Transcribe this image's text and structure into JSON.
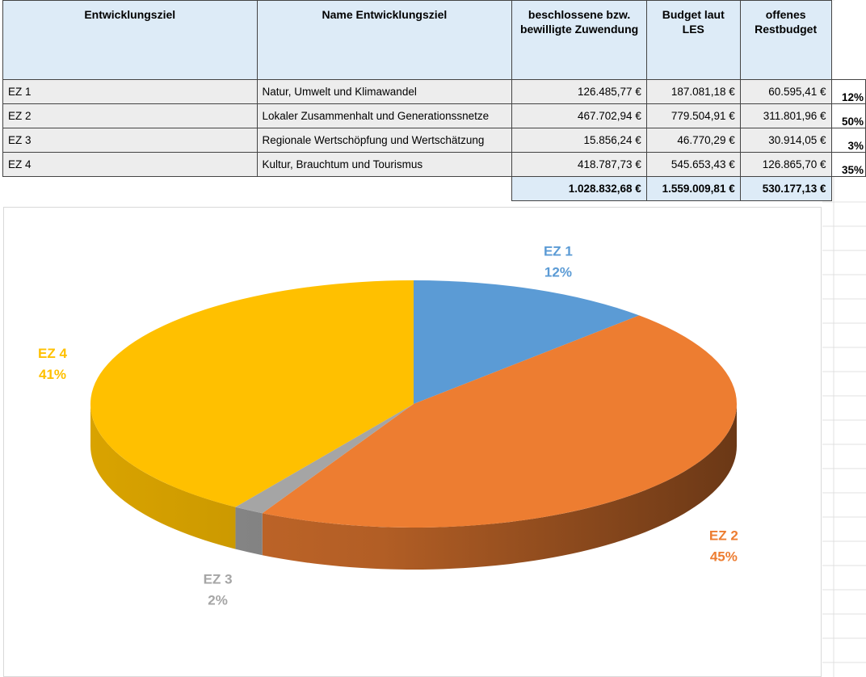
{
  "table": {
    "headers": [
      "Entwicklungsziel",
      "Name Entwicklungsziel",
      "beschlossene bzw. bewilligte Zuwendung",
      "Budget laut LES",
      "offenes Restbudget"
    ],
    "rows": [
      {
        "id": "EZ 1",
        "name": "Natur, Umwelt und Klimawandel",
        "zuwendung": "126.485,77 €",
        "budget": "187.081,18 €",
        "rest": "60.595,41 €",
        "pct": "12%"
      },
      {
        "id": "EZ 2",
        "name": "Lokaler Zusammenhalt und Generationssnetze",
        "zuwendung": "467.702,94 €",
        "budget": "779.504,91 €",
        "rest": "311.801,96 €",
        "pct": "50%"
      },
      {
        "id": "EZ 3",
        "name": "Regionale Wertschöpfung und Wertschätzung",
        "zuwendung": "15.856,24 €",
        "budget": "46.770,29 €",
        "rest": "30.914,05 €",
        "pct": "3%"
      },
      {
        "id": "EZ 4",
        "name": "Kultur, Brauchtum und Tourismus",
        "zuwendung": "418.787,73 €",
        "budget": "545.653,43 €",
        "rest": "126.865,70 €",
        "pct": "35%"
      }
    ],
    "totals": {
      "zuwendung": "1.028.832,68 €",
      "budget": "1.559.009,81 €",
      "rest": "530.177,13 €"
    }
  },
  "chart_data": {
    "type": "pie",
    "categories": [
      "EZ 1",
      "EZ 2",
      "EZ 3",
      "EZ 4"
    ],
    "values": [
      126485.77,
      467702.94,
      15856.24,
      418787.73
    ],
    "data_labels": [
      "12%",
      "45%",
      "2%",
      "41%"
    ],
    "colors": [
      "#5b9bd5",
      "#ed7d31",
      "#a5a5a5",
      "#ffc000"
    ],
    "label_colors": [
      "#5b9bd5",
      "#ed7d31",
      "#a5a5a5",
      "#ffc000"
    ],
    "style": "3d",
    "legend": "none"
  }
}
